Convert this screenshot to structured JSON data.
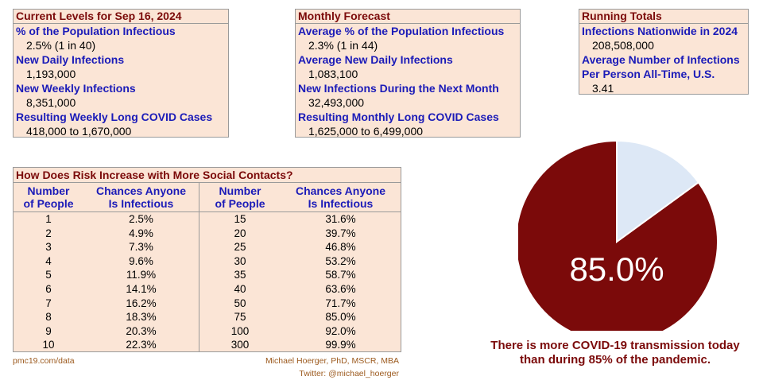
{
  "current": {
    "title": "Current Levels for Sep 16, 2024",
    "items": [
      {
        "label": "% of the Population Infectious",
        "value": "2.5% (1 in 40)"
      },
      {
        "label": "New Daily Infections",
        "value": "1,193,000"
      },
      {
        "label": "New Weekly Infections",
        "value": "8,351,000"
      },
      {
        "label": "Resulting Weekly Long COVID Cases",
        "value": "418,000 to 1,670,000"
      }
    ]
  },
  "forecast": {
    "title": "Monthly Forecast",
    "items": [
      {
        "label": "Average % of the Population Infectious",
        "value": "2.3% (1 in 44)"
      },
      {
        "label": "Average New Daily Infections",
        "value": "1,083,100"
      },
      {
        "label": "New Infections During the Next Month",
        "value": "32,493,000"
      },
      {
        "label": "Resulting Monthly Long COVID Cases",
        "value": "1,625,000 to 6,499,000"
      }
    ]
  },
  "totals": {
    "title": "Running Totals",
    "items": [
      {
        "label": "Infections Nationwide in 2024",
        "value": "208,508,000"
      },
      {
        "label": "Average Number of Infections",
        "label2": "Per Person All-Time, U.S.",
        "value": "3.41"
      }
    ]
  },
  "risk_table": {
    "title": "How Does Risk Increase with More Social Contacts?",
    "col_people": [
      "Number",
      "of People"
    ],
    "col_chance": [
      "Chances Anyone",
      "Is Infectious"
    ],
    "rows": [
      {
        "n1": "1",
        "p1": "2.5%",
        "n2": "15",
        "p2": "31.6%"
      },
      {
        "n1": "2",
        "p1": "4.9%",
        "n2": "20",
        "p2": "39.7%"
      },
      {
        "n1": "3",
        "p1": "7.3%",
        "n2": "25",
        "p2": "46.8%"
      },
      {
        "n1": "4",
        "p1": "9.6%",
        "n2": "30",
        "p2": "53.2%"
      },
      {
        "n1": "5",
        "p1": "11.9%",
        "n2": "35",
        "p2": "58.7%"
      },
      {
        "n1": "6",
        "p1": "14.1%",
        "n2": "40",
        "p2": "63.6%"
      },
      {
        "n1": "7",
        "p1": "16.2%",
        "n2": "50",
        "p2": "71.7%"
      },
      {
        "n1": "8",
        "p1": "18.3%",
        "n2": "75",
        "p2": "85.0%"
      },
      {
        "n1": "9",
        "p1": "20.3%",
        "n2": "100",
        "p2": "92.0%"
      },
      {
        "n1": "10",
        "p1": "22.3%",
        "n2": "300",
        "p2": "99.9%"
      }
    ]
  },
  "footer": {
    "site": "pmc19.com/data",
    "author": "Michael Hoerger, PhD, MSCR, MBA",
    "twitter": "Twitter: @michael_hoerger"
  },
  "chart_data": {
    "type": "pie",
    "values": [
      85.0,
      15.0
    ],
    "colors": [
      "#7b0a0a",
      "#dde8f6"
    ],
    "data_label": "85.0%",
    "caption_lines": [
      "There is more COVID-19 transmission today",
      "than during 85% of the pandemic."
    ]
  }
}
